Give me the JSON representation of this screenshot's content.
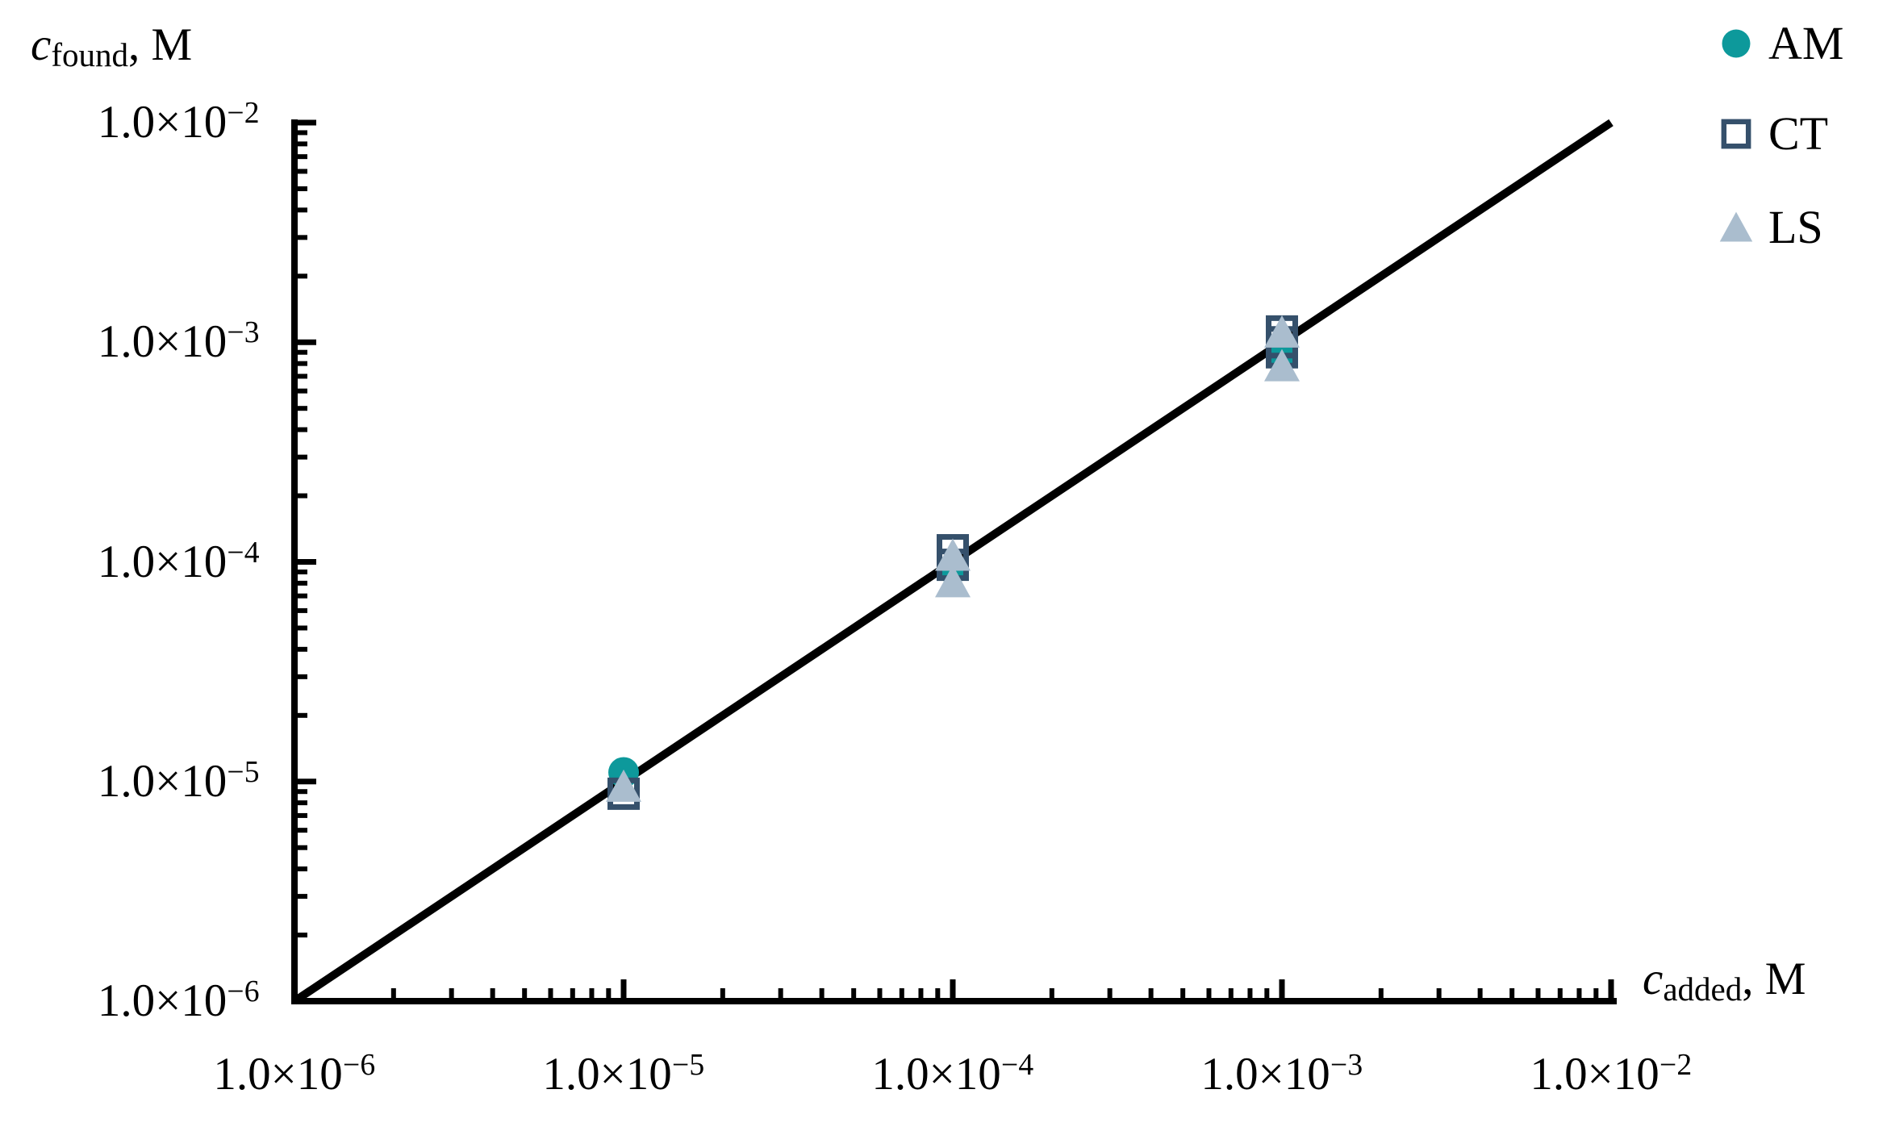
{
  "chart_data": {
    "type": "scatter",
    "x_scale": "log",
    "y_scale": "log",
    "xlim": [
      1e-06,
      0.01
    ],
    "ylim": [
      1e-06,
      0.01
    ],
    "grid": false,
    "background_color": "#ffffff",
    "axis_color": "#000000",
    "x_axis_title": {
      "symbol": "c",
      "subscript": "added",
      "suffix": ", M"
    },
    "y_axis_title": {
      "symbol": "c",
      "subscript": "found",
      "suffix": ", M"
    },
    "y_tick_labels": [
      {
        "value": 0.01,
        "base": "1.0×10",
        "exp": "−2"
      },
      {
        "value": 0.001,
        "base": "1.0×10",
        "exp": "−3"
      },
      {
        "value": 0.0001,
        "base": "1.0×10",
        "exp": "−4"
      },
      {
        "value": 1e-05,
        "base": "1.0×10",
        "exp": "−5"
      },
      {
        "value": 1e-06,
        "base": "1.0×10",
        "exp": "−6"
      }
    ],
    "x_tick_labels": [
      {
        "value": 1e-06,
        "base": "1.0×10",
        "exp": "−6"
      },
      {
        "value": 1e-05,
        "base": "1.0×10",
        "exp": "−5"
      },
      {
        "value": 0.0001,
        "base": "1.0×10",
        "exp": "−4"
      },
      {
        "value": 0.001,
        "base": "1.0×10",
        "exp": "−3"
      },
      {
        "value": 0.01,
        "base": "1.0×10",
        "exp": "−2"
      }
    ],
    "minor_ticks": "log-decades 2-9 on both axes",
    "identity_line": {
      "from": 1e-06,
      "to": 0.01,
      "color": "#000000"
    },
    "legend_position": "top-right",
    "series": [
      {
        "name": "AM",
        "marker": "circle",
        "color": "#0D999B",
        "points": [
          [
            1e-05,
            1.1e-05
          ],
          [
            0.0001,
            9.3e-05
          ],
          [
            0.001,
            0.0009
          ]
        ]
      },
      {
        "name": "CT",
        "marker": "open-square",
        "color": "#35506B",
        "points": [
          [
            1e-05,
            8.8e-06
          ],
          [
            0.0001,
            0.000113
          ],
          [
            0.0001,
            9.7e-05
          ],
          [
            0.001,
            0.00112
          ],
          [
            0.001,
            0.001
          ],
          [
            0.001,
            0.0009
          ]
        ]
      },
      {
        "name": "LS",
        "marker": "triangle",
        "color": "#AABDCE",
        "points": [
          [
            1e-05,
            9.5e-06
          ],
          [
            0.0001,
            0.000107
          ],
          [
            0.0001,
            8.1e-05
          ],
          [
            0.001,
            0.00111
          ],
          [
            0.001,
            0.00078
          ]
        ]
      }
    ]
  }
}
